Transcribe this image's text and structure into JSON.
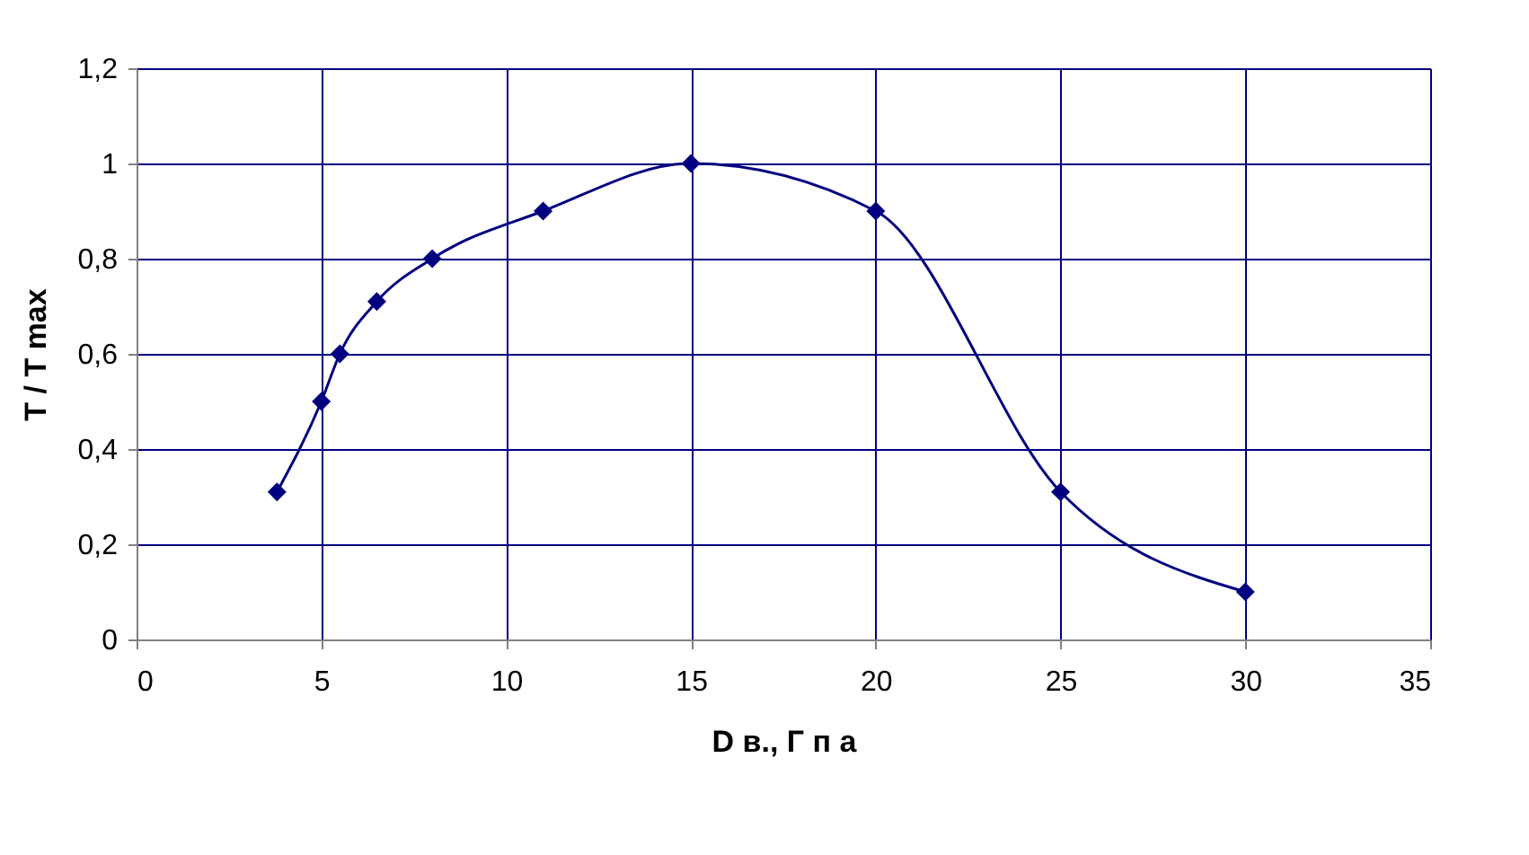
{
  "chart_data": {
    "type": "line",
    "xlabel": "D в., Г п а",
    "ylabel": "T / T max",
    "x": [
      3.8,
      5,
      5.5,
      6.5,
      8,
      11,
      15,
      20,
      25,
      30
    ],
    "series": [
      {
        "color": "#000080",
        "values": [
          0.31,
          0.5,
          0.6,
          0.71,
          0.8,
          0.9,
          1.0,
          0.9,
          0.31,
          0.1
        ]
      }
    ],
    "xlim": [
      0,
      35
    ],
    "xticks": [
      0,
      5,
      10,
      15,
      20,
      25,
      30,
      35
    ],
    "ylim": [
      0,
      1.2
    ],
    "yticks": [
      0,
      {
        "value": 0.2,
        "label": "0,2"
      },
      {
        "value": 0.4,
        "label": "0,4"
      },
      {
        "value": 0.6,
        "label": "0,6"
      },
      {
        "value": 0.8,
        "label": "0,8"
      },
      1,
      {
        "value": 1.2,
        "label": "1,2"
      }
    ],
    "grid": true,
    "marker": "diamond",
    "line_style": "solid"
  }
}
